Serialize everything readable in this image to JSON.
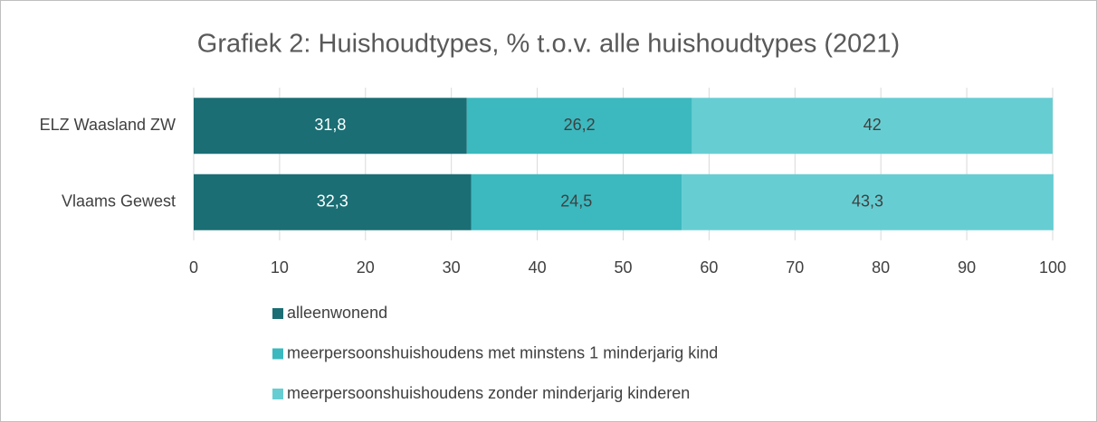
{
  "chart_data": {
    "type": "stacked-bar-horizontal",
    "title": "Grafiek 2: Huishoudtypes, % t.o.v. alle huishoudtypes (2021)",
    "categories": [
      "ELZ Waasland ZW",
      "Vlaams Gewest"
    ],
    "series": [
      {
        "name": "alleenwonend",
        "color": "#1a6e74",
        "values": [
          31.8,
          32.3
        ],
        "value_labels": [
          "31,8",
          "32,3"
        ]
      },
      {
        "name": "meerpersoonshuishoudens met minstens 1 minderjarig kind",
        "color": "#3bb9bf",
        "values": [
          26.2,
          24.5
        ],
        "value_labels": [
          "26,2",
          "24,5"
        ]
      },
      {
        "name": "meerpersoonshuishoudens zonder minderjarig kinderen",
        "color": "#66ced3",
        "values": [
          42,
          43.3
        ],
        "value_labels": [
          "42",
          "43,3"
        ]
      }
    ],
    "xlim": [
      0,
      100
    ],
    "xticks": [
      0,
      10,
      20,
      30,
      40,
      50,
      60,
      70,
      80,
      90,
      100
    ],
    "grid": true
  }
}
